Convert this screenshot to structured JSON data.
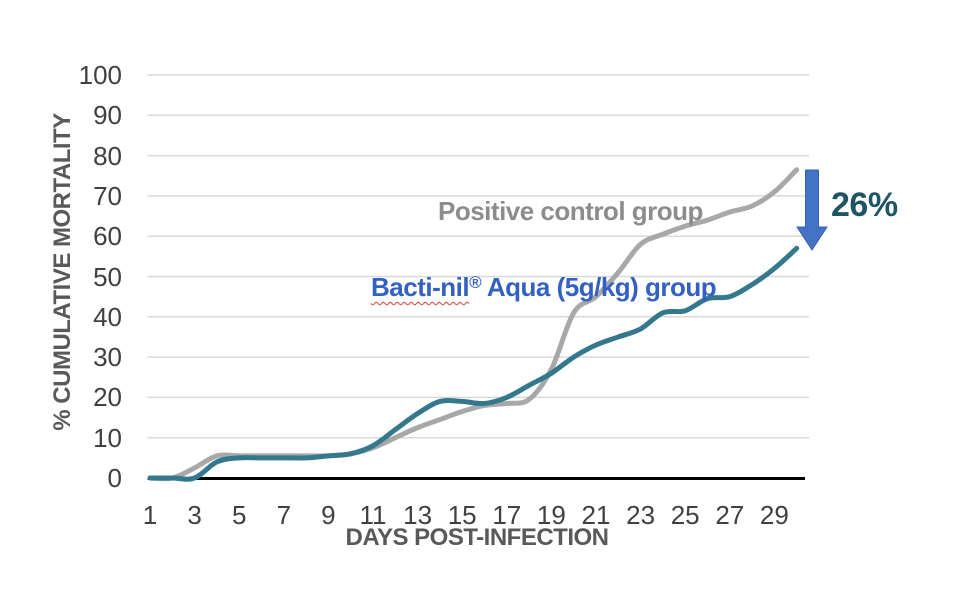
{
  "chart_data": {
    "type": "line",
    "title": "",
    "xlabel": "DAYS POST-INFECTION",
    "ylabel": "% CUMULATIVE MORTALITY",
    "x": [
      1,
      2,
      3,
      4,
      5,
      6,
      7,
      8,
      9,
      10,
      11,
      12,
      13,
      14,
      15,
      16,
      17,
      18,
      19,
      20,
      21,
      22,
      23,
      24,
      25,
      26,
      27,
      28,
      29,
      30
    ],
    "xticks": [
      1,
      3,
      5,
      7,
      9,
      11,
      13,
      15,
      17,
      19,
      21,
      23,
      25,
      27,
      29
    ],
    "ylim": [
      0,
      100
    ],
    "ytick_step": 10,
    "grid": "horizontal",
    "grid_color": "#d9d9d9",
    "axis_color": "#000000",
    "tick_color": "#404040",
    "legend_position": "inline-labels",
    "series": [
      {
        "id": "positive-control",
        "name": "Positive control group",
        "color": "#a8a8a8",
        "values": [
          0,
          0,
          2.5,
          5.5,
          5.5,
          5.5,
          5.5,
          5.5,
          5.5,
          6,
          7.5,
          10,
          12.5,
          14.5,
          16.5,
          18,
          18.5,
          19.5,
          27,
          41,
          45,
          51,
          58,
          60.5,
          62.5,
          64,
          66,
          67.5,
          71,
          76.5
        ]
      },
      {
        "id": "bacti-nil-aqua",
        "name": "Bacti-nil® Aqua (5g/kg) group",
        "color": "#34788e",
        "values": [
          0,
          0,
          0,
          4,
          5,
          5,
          5,
          5,
          5.5,
          6,
          8,
          12,
          16,
          19,
          19,
          18.5,
          20,
          23,
          26,
          30,
          33,
          35,
          37,
          41,
          41.5,
          44.5,
          45,
          48,
          52,
          57
        ]
      }
    ],
    "annotations": {
      "control_label": {
        "text": "Positive control group",
        "color": "#8c8c8c"
      },
      "treatment_label": {
        "brand": "Bacti-nil",
        "reg": "®",
        "rest": " Aqua (5g/kg) group",
        "color": "#3361c1",
        "squiggle_color": "#e8392c"
      },
      "arrow": {
        "direction": "down",
        "fill": "#4472c4",
        "stroke": "#3462ae"
      },
      "difference_label": {
        "text": "26%",
        "color": "#1e5566"
      }
    }
  }
}
